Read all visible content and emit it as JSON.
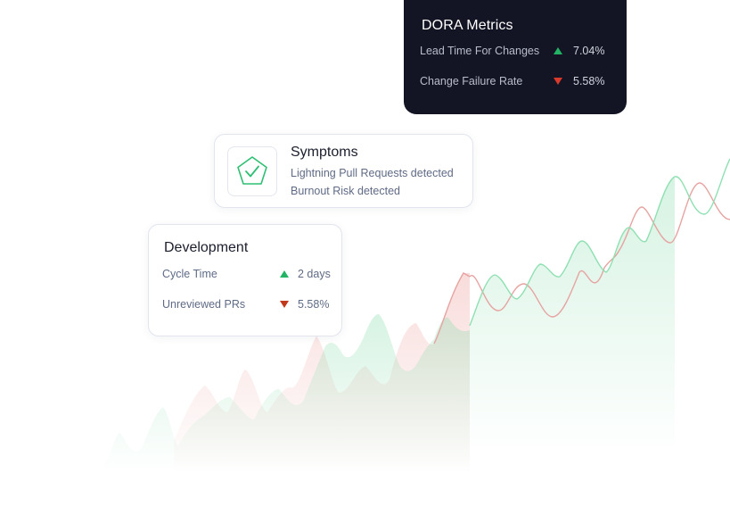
{
  "dora": {
    "title": "DORA Metrics",
    "metrics": [
      {
        "label": "Lead Time For Changes",
        "direction": "up",
        "value": "7.04%"
      },
      {
        "label": "Change Failure Rate",
        "direction": "down",
        "value": "5.58%"
      }
    ]
  },
  "symptoms": {
    "title": "Symptoms",
    "icon": "pentagon-check-icon",
    "lines": [
      "Lightning Pull Requests detected",
      "Burnout Risk detected"
    ]
  },
  "development": {
    "title": "Development",
    "metrics": [
      {
        "label": "Cycle Time",
        "direction": "up",
        "value": "2 days"
      },
      {
        "label": "Unreviewed PRs",
        "direction": "down",
        "value": "5.58%"
      }
    ]
  },
  "colors": {
    "up": "#22b464",
    "down": "#d93a2b",
    "green_line": "#7fd9a6",
    "red_line": "#e79a9a",
    "dark_card": "#131524"
  }
}
